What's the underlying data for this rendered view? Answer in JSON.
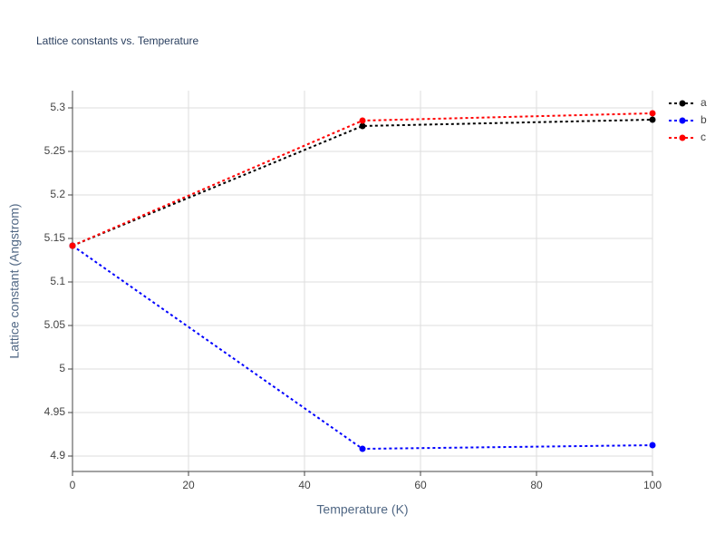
{
  "chart_data": {
    "type": "line",
    "title": "Lattice constants vs. Temperature",
    "x_label": "Temperature (K)",
    "y_label": "Lattice constant (Angstrom)",
    "x": [
      0,
      50,
      100
    ],
    "series": [
      {
        "name": "a",
        "color": "#000000",
        "values": [
          5.1417,
          5.2792,
          5.2865
        ]
      },
      {
        "name": "b",
        "color": "#0000ff",
        "values": [
          5.1417,
          4.9083,
          4.9125
        ]
      },
      {
        "name": "c",
        "color": "#ff0000",
        "values": [
          5.1417,
          5.2854,
          5.2938
        ]
      }
    ],
    "xlim": [
      0,
      100
    ],
    "xticks": [
      0,
      20,
      40,
      60,
      80,
      100
    ],
    "ylim": [
      4.8823,
      5.3198
    ],
    "yticks": [
      4.9,
      4.95,
      5,
      5.05,
      5.1,
      5.15,
      5.2,
      5.25,
      5.3
    ],
    "grid": true,
    "legend": "right"
  }
}
